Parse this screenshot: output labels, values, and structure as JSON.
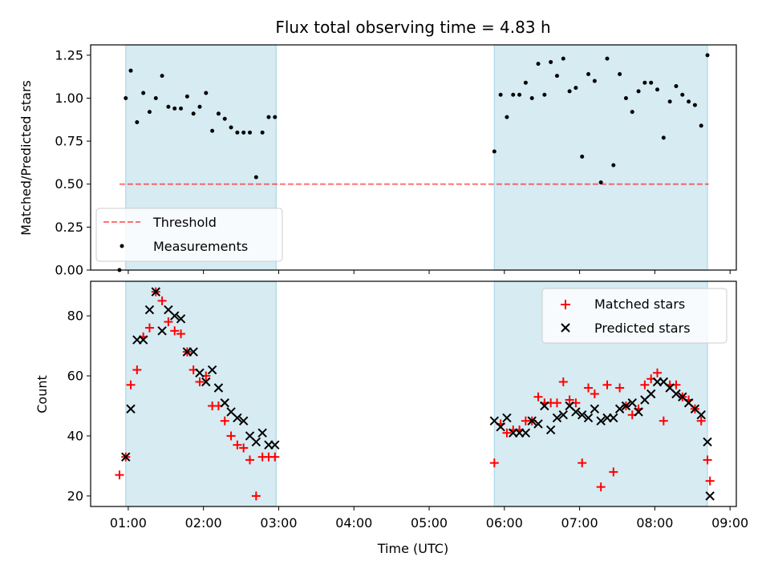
{
  "figure": {
    "title": "Flux total observing time = 4.83 h",
    "xlabel": "Time (UTC)"
  },
  "colors": {
    "shade": "#add8e6",
    "threshold": "#ff0000",
    "measurement": "#000000",
    "matched": "#ff0000",
    "predicted": "#000000"
  },
  "chart_data": [
    {
      "type": "scatter",
      "panel": "top",
      "ylabel": "Matched/Predicted stars",
      "xlim": [
        "00:30",
        "09:05"
      ],
      "ylim": [
        0,
        1.31
      ],
      "yticks": [
        "0.00",
        "0.25",
        "0.50",
        "0.75",
        "1.00",
        "1.25"
      ],
      "shaded_intervals": [
        [
          "00:58",
          "02:58"
        ],
        [
          "05:52",
          "08:42"
        ]
      ],
      "legend": {
        "position": "lower-left",
        "entries": [
          "Threshold",
          "Measurements"
        ]
      },
      "threshold": {
        "name": "Threshold",
        "y": 0.5,
        "x": [
          "00:53",
          "08:43"
        ],
        "style": "dashed"
      },
      "series": [
        {
          "name": "Measurements",
          "marker": "dot",
          "points": [
            [
              "00:53",
              0.0
            ],
            [
              "00:58",
              1.0
            ],
            [
              "01:02",
              1.16
            ],
            [
              "01:07",
              0.86
            ],
            [
              "01:12",
              1.03
            ],
            [
              "01:17",
              0.92
            ],
            [
              "01:22",
              1.0
            ],
            [
              "01:27",
              1.13
            ],
            [
              "01:32",
              0.95
            ],
            [
              "01:37",
              0.94
            ],
            [
              "01:42",
              0.94
            ],
            [
              "01:47",
              1.01
            ],
            [
              "01:52",
              0.91
            ],
            [
              "01:57",
              0.95
            ],
            [
              "02:02",
              1.03
            ],
            [
              "02:07",
              0.81
            ],
            [
              "02:12",
              0.91
            ],
            [
              "02:17",
              0.88
            ],
            [
              "02:22",
              0.83
            ],
            [
              "02:27",
              0.8
            ],
            [
              "02:32",
              0.8
            ],
            [
              "02:37",
              0.8
            ],
            [
              "02:42",
              0.54
            ],
            [
              "02:47",
              0.8
            ],
            [
              "02:52",
              0.89
            ],
            [
              "02:57",
              0.89
            ],
            [
              "05:52",
              0.69
            ],
            [
              "05:57",
              1.02
            ],
            [
              "06:02",
              0.89
            ],
            [
              "06:07",
              1.02
            ],
            [
              "06:12",
              1.02
            ],
            [
              "06:17",
              1.09
            ],
            [
              "06:22",
              1.0
            ],
            [
              "06:27",
              1.2
            ],
            [
              "06:32",
              1.02
            ],
            [
              "06:37",
              1.21
            ],
            [
              "06:42",
              1.13
            ],
            [
              "06:47",
              1.23
            ],
            [
              "06:52",
              1.04
            ],
            [
              "06:57",
              1.06
            ],
            [
              "07:02",
              0.66
            ],
            [
              "07:07",
              1.14
            ],
            [
              "07:12",
              1.1
            ],
            [
              "07:17",
              0.51
            ],
            [
              "07:22",
              1.23
            ],
            [
              "07:27",
              0.61
            ],
            [
              "07:32",
              1.14
            ],
            [
              "07:37",
              1.0
            ],
            [
              "07:42",
              0.92
            ],
            [
              "07:47",
              1.04
            ],
            [
              "07:52",
              1.09
            ],
            [
              "07:57",
              1.09
            ],
            [
              "08:02",
              1.05
            ],
            [
              "08:07",
              0.77
            ],
            [
              "08:12",
              0.98
            ],
            [
              "08:17",
              1.07
            ],
            [
              "08:22",
              1.02
            ],
            [
              "08:27",
              0.98
            ],
            [
              "08:32",
              0.96
            ],
            [
              "08:37",
              0.84
            ],
            [
              "08:42",
              1.25
            ]
          ]
        }
      ]
    },
    {
      "type": "scatter",
      "panel": "bottom",
      "ylabel": "Count",
      "xlim": [
        "00:30",
        "09:05"
      ],
      "ylim": [
        16.5,
        91.5
      ],
      "yticks": [
        "20",
        "40",
        "60",
        "80"
      ],
      "xticks": [
        "01:00",
        "02:00",
        "03:00",
        "04:00",
        "05:00",
        "06:00",
        "07:00",
        "08:00",
        "09:00"
      ],
      "shaded_intervals": [
        [
          "00:58",
          "02:58"
        ],
        [
          "05:52",
          "08:42"
        ]
      ],
      "legend": {
        "position": "top-right",
        "entries": [
          "Matched stars",
          "Predicted stars"
        ]
      },
      "series": [
        {
          "name": "Matched stars",
          "marker": "plus",
          "points": [
            [
              "00:53",
              27
            ],
            [
              "00:58",
              33
            ],
            [
              "01:02",
              57
            ],
            [
              "01:07",
              62
            ],
            [
              "01:12",
              73
            ],
            [
              "01:17",
              76
            ],
            [
              "01:22",
              88
            ],
            [
              "01:27",
              85
            ],
            [
              "01:32",
              78
            ],
            [
              "01:37",
              75
            ],
            [
              "01:42",
              74
            ],
            [
              "01:47",
              68
            ],
            [
              "01:52",
              62
            ],
            [
              "01:57",
              58
            ],
            [
              "02:02",
              60
            ],
            [
              "02:07",
              50
            ],
            [
              "02:12",
              50
            ],
            [
              "02:17",
              45
            ],
            [
              "02:22",
              40
            ],
            [
              "02:27",
              37
            ],
            [
              "02:32",
              36
            ],
            [
              "02:37",
              32
            ],
            [
              "02:42",
              20
            ],
            [
              "02:47",
              33
            ],
            [
              "02:52",
              33
            ],
            [
              "02:57",
              33
            ],
            [
              "05:52",
              31
            ],
            [
              "05:57",
              44
            ],
            [
              "06:02",
              41
            ],
            [
              "06:07",
              42
            ],
            [
              "06:12",
              42
            ],
            [
              "06:17",
              45
            ],
            [
              "06:22",
              45
            ],
            [
              "06:27",
              53
            ],
            [
              "06:32",
              51
            ],
            [
              "06:37",
              51
            ],
            [
              "06:42",
              51
            ],
            [
              "06:47",
              58
            ],
            [
              "06:52",
              52
            ],
            [
              "06:57",
              51
            ],
            [
              "07:02",
              31
            ],
            [
              "07:07",
              56
            ],
            [
              "07:12",
              54
            ],
            [
              "07:17",
              23
            ],
            [
              "07:22",
              57
            ],
            [
              "07:27",
              28
            ],
            [
              "07:32",
              56
            ],
            [
              "07:37",
              50
            ],
            [
              "07:42",
              47
            ],
            [
              "07:47",
              49
            ],
            [
              "07:52",
              57
            ],
            [
              "07:57",
              59
            ],
            [
              "08:02",
              61
            ],
            [
              "08:07",
              45
            ],
            [
              "08:12",
              57
            ],
            [
              "08:17",
              57
            ],
            [
              "08:22",
              53
            ],
            [
              "08:27",
              52
            ],
            [
              "08:32",
              49
            ],
            [
              "08:37",
              45
            ],
            [
              "08:42",
              32
            ],
            [
              "08:44",
              25
            ]
          ]
        },
        {
          "name": "Predicted stars",
          "marker": "x",
          "points": [
            [
              "00:58",
              33
            ],
            [
              "01:02",
              49
            ],
            [
              "01:07",
              72
            ],
            [
              "01:12",
              72
            ],
            [
              "01:17",
              82
            ],
            [
              "01:22",
              88
            ],
            [
              "01:27",
              75
            ],
            [
              "01:32",
              82
            ],
            [
              "01:37",
              80
            ],
            [
              "01:42",
              79
            ],
            [
              "01:47",
              68
            ],
            [
              "01:52",
              68
            ],
            [
              "01:57",
              61
            ],
            [
              "02:02",
              58
            ],
            [
              "02:07",
              62
            ],
            [
              "02:12",
              56
            ],
            [
              "02:17",
              51
            ],
            [
              "02:22",
              48
            ],
            [
              "02:27",
              46
            ],
            [
              "02:32",
              45
            ],
            [
              "02:37",
              40
            ],
            [
              "02:42",
              38
            ],
            [
              "02:47",
              41
            ],
            [
              "02:52",
              37
            ],
            [
              "02:57",
              37
            ],
            [
              "05:52",
              45
            ],
            [
              "05:57",
              43
            ],
            [
              "06:02",
              46
            ],
            [
              "06:07",
              41
            ],
            [
              "06:12",
              41
            ],
            [
              "06:17",
              41
            ],
            [
              "06:22",
              45
            ],
            [
              "06:27",
              44
            ],
            [
              "06:32",
              50
            ],
            [
              "06:37",
              42
            ],
            [
              "06:42",
              46
            ],
            [
              "06:47",
              47
            ],
            [
              "06:52",
              50
            ],
            [
              "06:57",
              48
            ],
            [
              "07:02",
              47
            ],
            [
              "07:07",
              46
            ],
            [
              "07:12",
              49
            ],
            [
              "07:17",
              45
            ],
            [
              "07:22",
              46
            ],
            [
              "07:27",
              46
            ],
            [
              "07:32",
              49
            ],
            [
              "07:37",
              50
            ],
            [
              "07:42",
              51
            ],
            [
              "07:47",
              48
            ],
            [
              "07:52",
              52
            ],
            [
              "07:57",
              54
            ],
            [
              "08:02",
              58
            ],
            [
              "08:07",
              58
            ],
            [
              "08:12",
              56
            ],
            [
              "08:17",
              54
            ],
            [
              "08:22",
              53
            ],
            [
              "08:27",
              51
            ],
            [
              "08:32",
              49
            ],
            [
              "08:37",
              47
            ],
            [
              "08:42",
              38
            ],
            [
              "08:44",
              20
            ]
          ]
        }
      ]
    }
  ]
}
